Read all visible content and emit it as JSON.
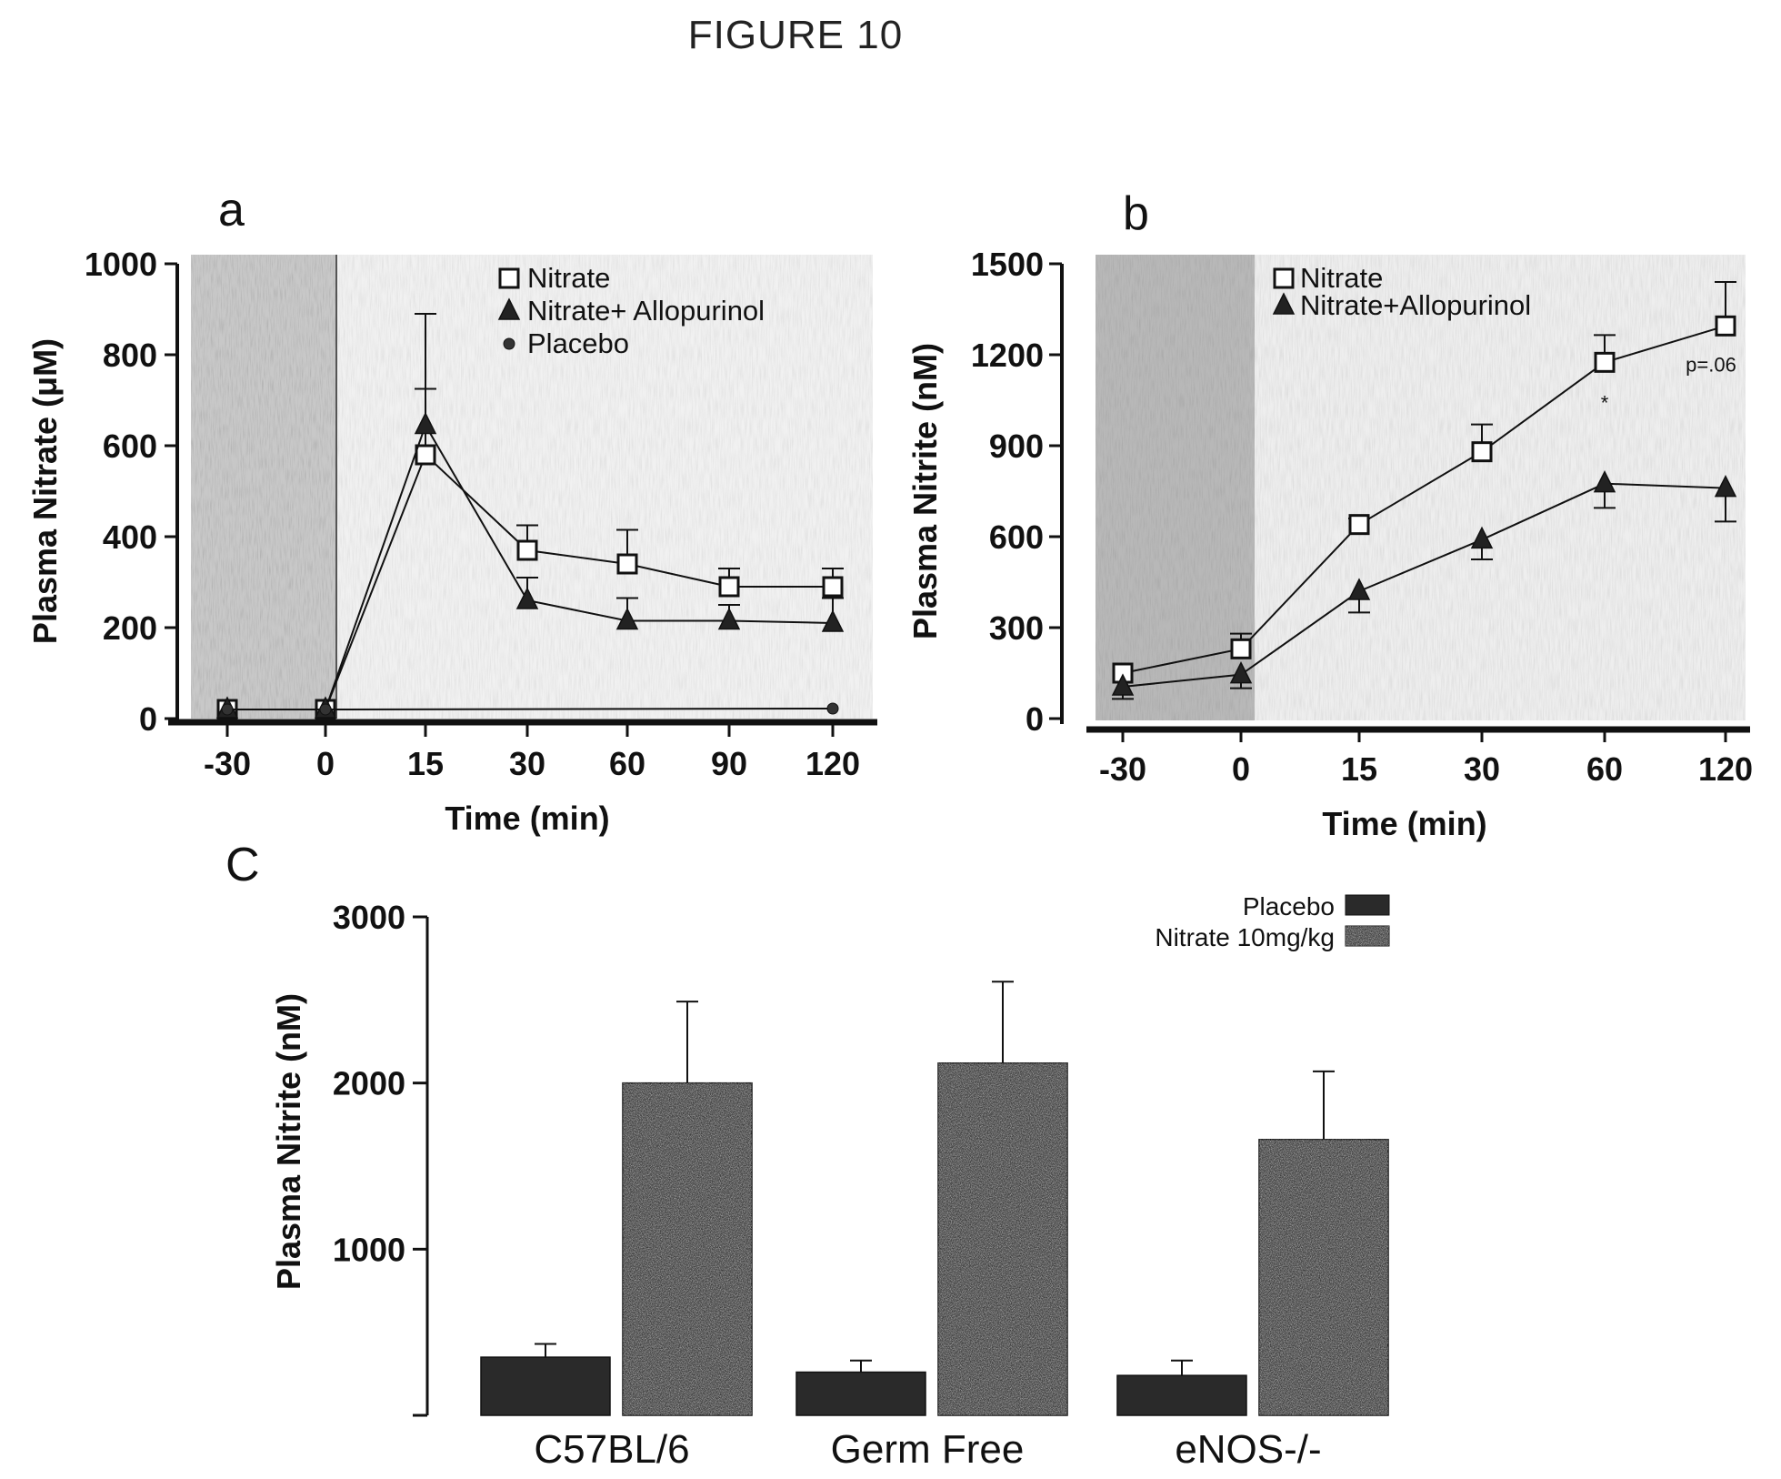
{
  "figure_title": "FIGURE 10",
  "chart_data": [
    {
      "panel": "a",
      "type": "line",
      "xlabel": "Time (min)",
      "ylabel": "Plasma Nitrate (μM)",
      "ylim": [
        0,
        1000
      ],
      "yticks": [
        "0",
        "200",
        "400",
        "600",
        "800",
        "1000"
      ],
      "categories": [
        "-30",
        "0",
        "15",
        "30",
        "60",
        "90",
        "120"
      ],
      "legend_position": "top-right",
      "series": [
        {
          "name": "Nitrate",
          "marker": "open-square",
          "values": [
            20,
            20,
            580,
            370,
            340,
            290,
            290
          ],
          "error": [
            0,
            0,
            145,
            55,
            75,
            40,
            40
          ]
        },
        {
          "name": "Nitrate+ Allopurinol",
          "marker": "filled-triangle",
          "values": [
            20,
            20,
            645,
            260,
            215,
            215,
            210
          ],
          "error": [
            0,
            0,
            245,
            50,
            50,
            35,
            55
          ]
        },
        {
          "name": "Placebo",
          "marker": "filled-circle",
          "values": [
            20,
            20,
            null,
            null,
            null,
            null,
            22
          ],
          "error": [
            0,
            0,
            0,
            0,
            0,
            0,
            0
          ]
        }
      ]
    },
    {
      "panel": "b",
      "type": "line",
      "xlabel": "Time (min)",
      "ylabel": "Plasma Nitrite (nM)",
      "ylim": [
        0,
        1500
      ],
      "yticks": [
        "0",
        "300",
        "600",
        "900",
        "1200",
        "1500"
      ],
      "categories": [
        "-30",
        "0",
        "15",
        "30",
        "60",
        "120"
      ],
      "legend_position": "top-left",
      "series": [
        {
          "name": "Nitrate",
          "marker": "open-square",
          "values": [
            150,
            230,
            640,
            880,
            1175,
            1295
          ],
          "error": [
            0,
            50,
            20,
            90,
            90,
            145
          ]
        },
        {
          "name": "Nitrate+Allopurinol",
          "marker": "filled-triangle",
          "values": [
            105,
            145,
            420,
            590,
            775,
            760
          ],
          "error": [
            40,
            45,
            70,
            65,
            80,
            110
          ]
        }
      ],
      "annotations": [
        "*",
        "p=.06"
      ]
    },
    {
      "panel": "C",
      "type": "bar",
      "ylabel": "Plasma Nitrite (nM)",
      "ylim": [
        0,
        3000
      ],
      "yticks": [
        "1000",
        "2000",
        "3000"
      ],
      "categories": [
        "C57BL/6",
        "Germ Free",
        "eNOS-/-"
      ],
      "legend_position": "top-right",
      "series": [
        {
          "name": "Placebo",
          "values": [
            350,
            260,
            240
          ],
          "error": [
            80,
            70,
            90
          ]
        },
        {
          "name": "Nitrate 10mg/kg",
          "values": [
            2000,
            2120,
            1660
          ],
          "error": [
            490,
            490,
            410
          ]
        }
      ]
    }
  ]
}
